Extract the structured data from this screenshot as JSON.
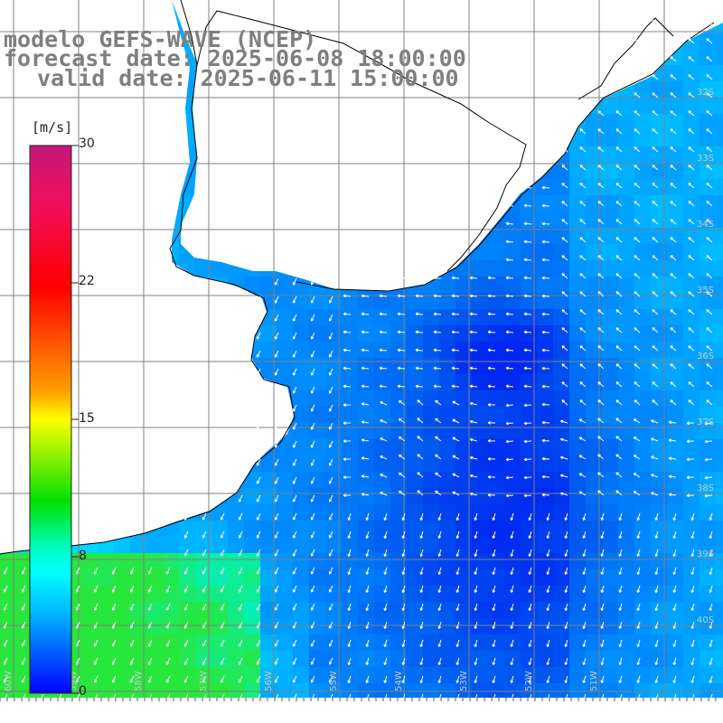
{
  "title": {
    "line1": "modelo GEFS-WAVE (NCEP)",
    "line2": "forecast date: 2025-06-08 18:00:00",
    "line3": "valid date: 2025-06-11 15:00:00"
  },
  "legend": {
    "unit": "[m/s]",
    "ticks": [
      "30",
      "22",
      "15",
      "8",
      "0"
    ],
    "range": [
      0,
      30
    ]
  },
  "map": {
    "variable": "wind speed and direction",
    "lat_labels": [
      "32S",
      "33S",
      "34S",
      "35S",
      "36S",
      "37S",
      "38S",
      "39S",
      "40S"
    ],
    "lon_labels": [
      "60W",
      "59W",
      "58W",
      "57W",
      "56W",
      "55W",
      "54W",
      "53W",
      "52W",
      "51W"
    ],
    "colors": {
      "land": "#ffffff",
      "coast": "#000000",
      "grid": "#808080",
      "arrows": "#ffffff",
      "text": "#7f7f7f"
    }
  }
}
